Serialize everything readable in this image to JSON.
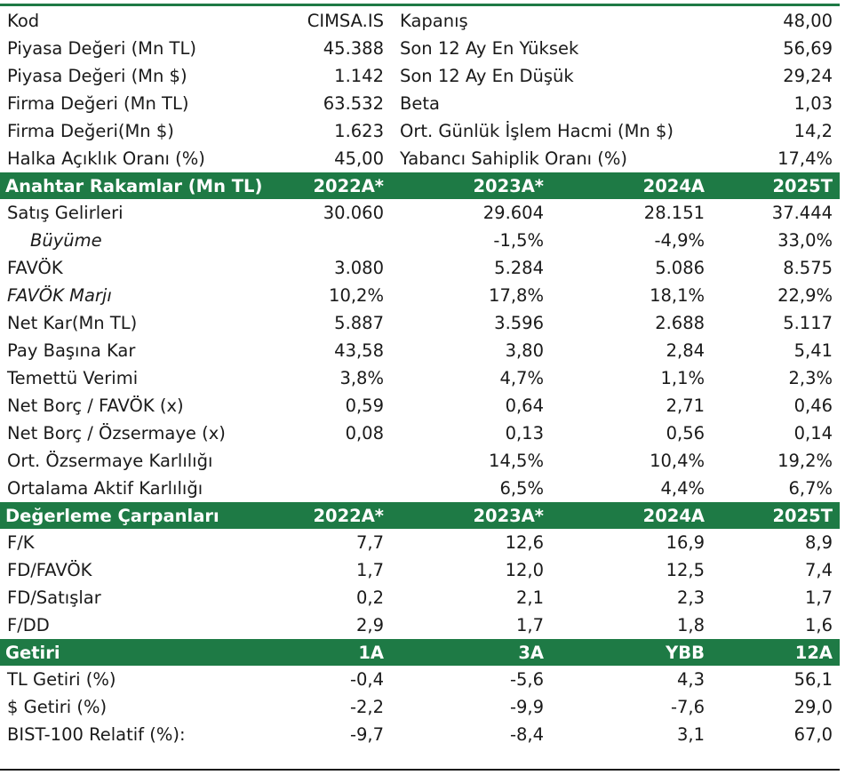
{
  "summary": {
    "rows": [
      {
        "l1": "Kod",
        "v1": "CIMSA.IS",
        "l2": "Kapanış",
        "v2": "48,00"
      },
      {
        "l1": "Piyasa Değeri (Mn TL)",
        "v1": "45.388",
        "l2": "Son 12 Ay En Yüksek",
        "v2": "56,69"
      },
      {
        "l1": "Piyasa Değeri (Mn $)",
        "v1": "1.142",
        "l2": "Son 12 Ay En Düşük",
        "v2": "29,24"
      },
      {
        "l1": "Firma Değeri (Mn TL)",
        "v1": "63.532",
        "l2": "Beta",
        "v2": "1,03"
      },
      {
        "l1": "Firma Değeri(Mn $)",
        "v1": "1.623",
        "l2": "Ort. Günlük İşlem Hacmi (Mn $)",
        "v2": "14,2"
      },
      {
        "l1": "Halka Açıklık Oranı (%)",
        "v1": "45,00",
        "l2": "Yabancı Sahiplik Oranı (%)",
        "v2": "17,4%"
      }
    ]
  },
  "key_figures": {
    "header": [
      "Anahtar Rakamlar (Mn TL)",
      "2022A*",
      "2023A*",
      "2024A",
      "2025T"
    ],
    "rows": [
      {
        "label": "Satış Gelirleri",
        "values": [
          "30.060",
          "29.604",
          "28.151",
          "37.444"
        ]
      },
      {
        "label": "Büyüme",
        "values": [
          "",
          "-1,5%",
          "-4,9%",
          "33,0%"
        ]
      },
      {
        "label": "FAVÖK",
        "values": [
          "3.080",
          "5.284",
          "5.086",
          "8.575"
        ]
      },
      {
        "label": "FAVÖK Marjı",
        "values": [
          "10,2%",
          "17,8%",
          "18,1%",
          "22,9%"
        ]
      },
      {
        "label": "Net Kar(Mn TL)",
        "values": [
          "5.887",
          "3.596",
          "2.688",
          "5.117"
        ]
      },
      {
        "label": "Pay Başına Kar",
        "values": [
          "43,58",
          "3,80",
          "2,84",
          "5,41"
        ]
      },
      {
        "label": "Temettü Verimi",
        "values": [
          "3,8%",
          "4,7%",
          "1,1%",
          "2,3%"
        ]
      },
      {
        "label": "Net Borç / FAVÖK (x)",
        "values": [
          "0,59",
          "0,64",
          "2,71",
          "0,46"
        ]
      },
      {
        "label": "Net Borç / Özsermaye (x)",
        "values": [
          "0,08",
          "0,13",
          "0,56",
          "0,14"
        ]
      },
      {
        "label": "Ort. Özsermaye Karlılığı",
        "values": [
          "",
          "14,5%",
          "10,4%",
          "19,2%"
        ]
      },
      {
        "label": "Ortalama Aktif Karlılığı",
        "values": [
          "",
          "6,5%",
          "4,4%",
          "6,7%"
        ]
      }
    ]
  },
  "multiples": {
    "header": [
      "Değerleme Çarpanları",
      "2022A*",
      "2023A*",
      "2024A",
      "2025T"
    ],
    "rows": [
      {
        "label": "F/K",
        "values": [
          "7,7",
          "12,6",
          "16,9",
          "8,9"
        ]
      },
      {
        "label": "FD/FAVÖK",
        "values": [
          "1,7",
          "12,0",
          "12,5",
          "7,4"
        ]
      },
      {
        "label": "FD/Satışlar",
        "values": [
          "0,2",
          "2,1",
          "2,3",
          "1,7"
        ]
      },
      {
        "label": "F/DD",
        "values": [
          "2,9",
          "1,7",
          "1,8",
          "1,6"
        ]
      }
    ]
  },
  "returns": {
    "header": [
      "Getiri",
      "1A",
      "3A",
      "YBB",
      "12A"
    ],
    "rows": [
      {
        "label": "TL Getiri (%)",
        "values": [
          "-0,4",
          "-5,6",
          "4,3",
          "56,1"
        ]
      },
      {
        "label": "$ Getiri (%)",
        "values": [
          "-2,2",
          "-9,9",
          "-7,6",
          "29,0"
        ]
      },
      {
        "label": "BIST-100 Relatif (%):",
        "values": [
          "-9,7",
          "-8,4",
          "3,1",
          "67,0"
        ]
      }
    ]
  },
  "colors": {
    "header_bg": "#1e7a45",
    "header_text": "#ffffff",
    "text": "#1a1a1a"
  }
}
